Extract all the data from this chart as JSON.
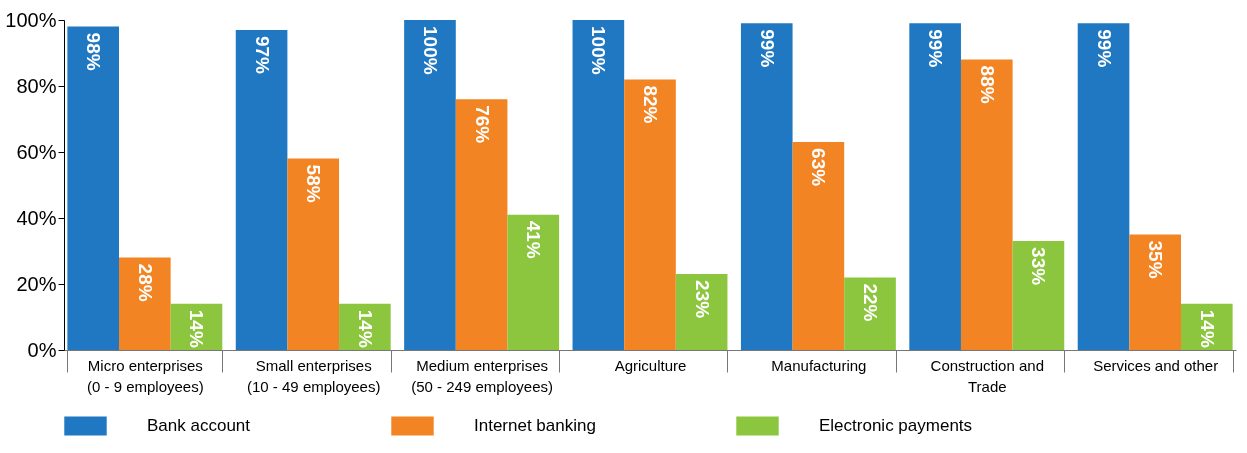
{
  "chart_data": {
    "type": "bar",
    "categories": [
      "Micro enterprises\n(0 - 9 employees)",
      "Small enterprises\n(10 - 49 employees)",
      "Medium enterprises\n(50 - 249 employees)",
      "Agriculture",
      "Manufacturing",
      "Construction and\nTrade",
      "Services and other"
    ],
    "series": [
      {
        "name": "Bank account",
        "color": "#1f78c1",
        "values": [
          98,
          97,
          100,
          100,
          99,
          99,
          99
        ],
        "value_labels": [
          "98%",
          "97%",
          "100%",
          "100%",
          "99%",
          "99%",
          "99%"
        ]
      },
      {
        "name": "Internet banking",
        "color": "#f28423",
        "values": [
          28,
          58,
          76,
          82,
          63,
          88,
          35
        ],
        "value_labels": [
          "28%",
          "58%",
          "76%",
          "82%",
          "63%",
          "88%",
          "35%"
        ]
      },
      {
        "name": "Electronic payments",
        "color": "#8cc63f",
        "values": [
          14,
          14,
          41,
          23,
          22,
          33,
          14
        ],
        "value_labels": [
          "14%",
          "14%",
          "41%",
          "23%",
          "22%",
          "33%",
          "14%"
        ]
      }
    ],
    "ylim": [
      0,
      100
    ],
    "yticks": [
      {
        "value": 0,
        "label": "0%"
      },
      {
        "value": 20,
        "label": "20%"
      },
      {
        "value": 40,
        "label": "40%"
      },
      {
        "value": 60,
        "label": "60%"
      },
      {
        "value": 80,
        "label": "80%"
      },
      {
        "value": 100,
        "label": "100%"
      }
    ],
    "legend": "bottom"
  }
}
